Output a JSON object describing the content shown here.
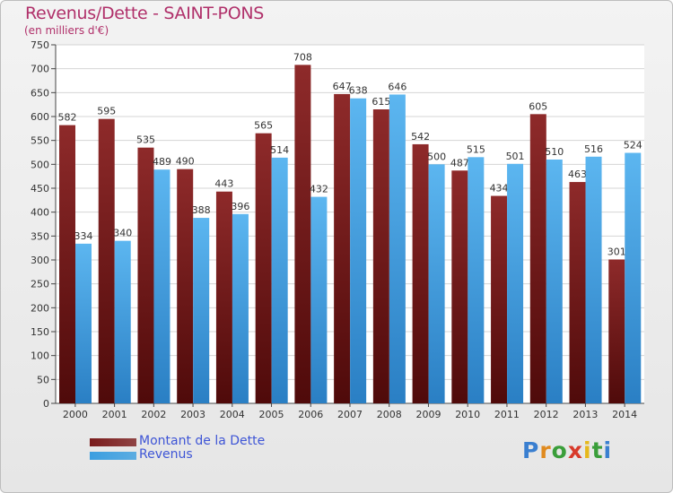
{
  "title": "Revenus/Dette - SAINT-PONS",
  "subtitle": "(en milliers d'€)",
  "chart_data": {
    "type": "bar",
    "categories": [
      "2000",
      "2001",
      "2002",
      "2003",
      "2004",
      "2005",
      "2006",
      "2007",
      "2008",
      "2009",
      "2010",
      "2011",
      "2012",
      "2013",
      "2014"
    ],
    "series": [
      {
        "name": "Montant de la Dette",
        "values": [
          582,
          595,
          535,
          490,
          443,
          565,
          708,
          647,
          615,
          542,
          487,
          434,
          605,
          463,
          301
        ],
        "color": "#7a1c1c"
      },
      {
        "name": "Revenus",
        "values": [
          334,
          340,
          489,
          388,
          396,
          514,
          432,
          638,
          646,
          500,
          515,
          501,
          510,
          516,
          524
        ],
        "color": "#3a9ee0"
      }
    ],
    "ylim": [
      0,
      750
    ],
    "yticks": [
      0,
      50,
      100,
      150,
      200,
      250,
      300,
      350,
      400,
      450,
      500,
      550,
      600,
      650,
      700,
      750
    ],
    "grid": true,
    "legend_placement": "bottom-left"
  },
  "legend": [
    {
      "label": "Montant de la Dette",
      "color": "#7a1c1c"
    },
    {
      "label": "Revenus",
      "color": "#3a9ee0"
    }
  ],
  "logo": {
    "letters": [
      "P",
      "r",
      "o",
      "x",
      "i",
      "t",
      "i"
    ],
    "colors": [
      "#3a7fd0",
      "#e08a1f",
      "#3a9e3a",
      "#d83a2a",
      "#e6b81c",
      "#3a9e3a",
      "#3a7fd0"
    ]
  }
}
